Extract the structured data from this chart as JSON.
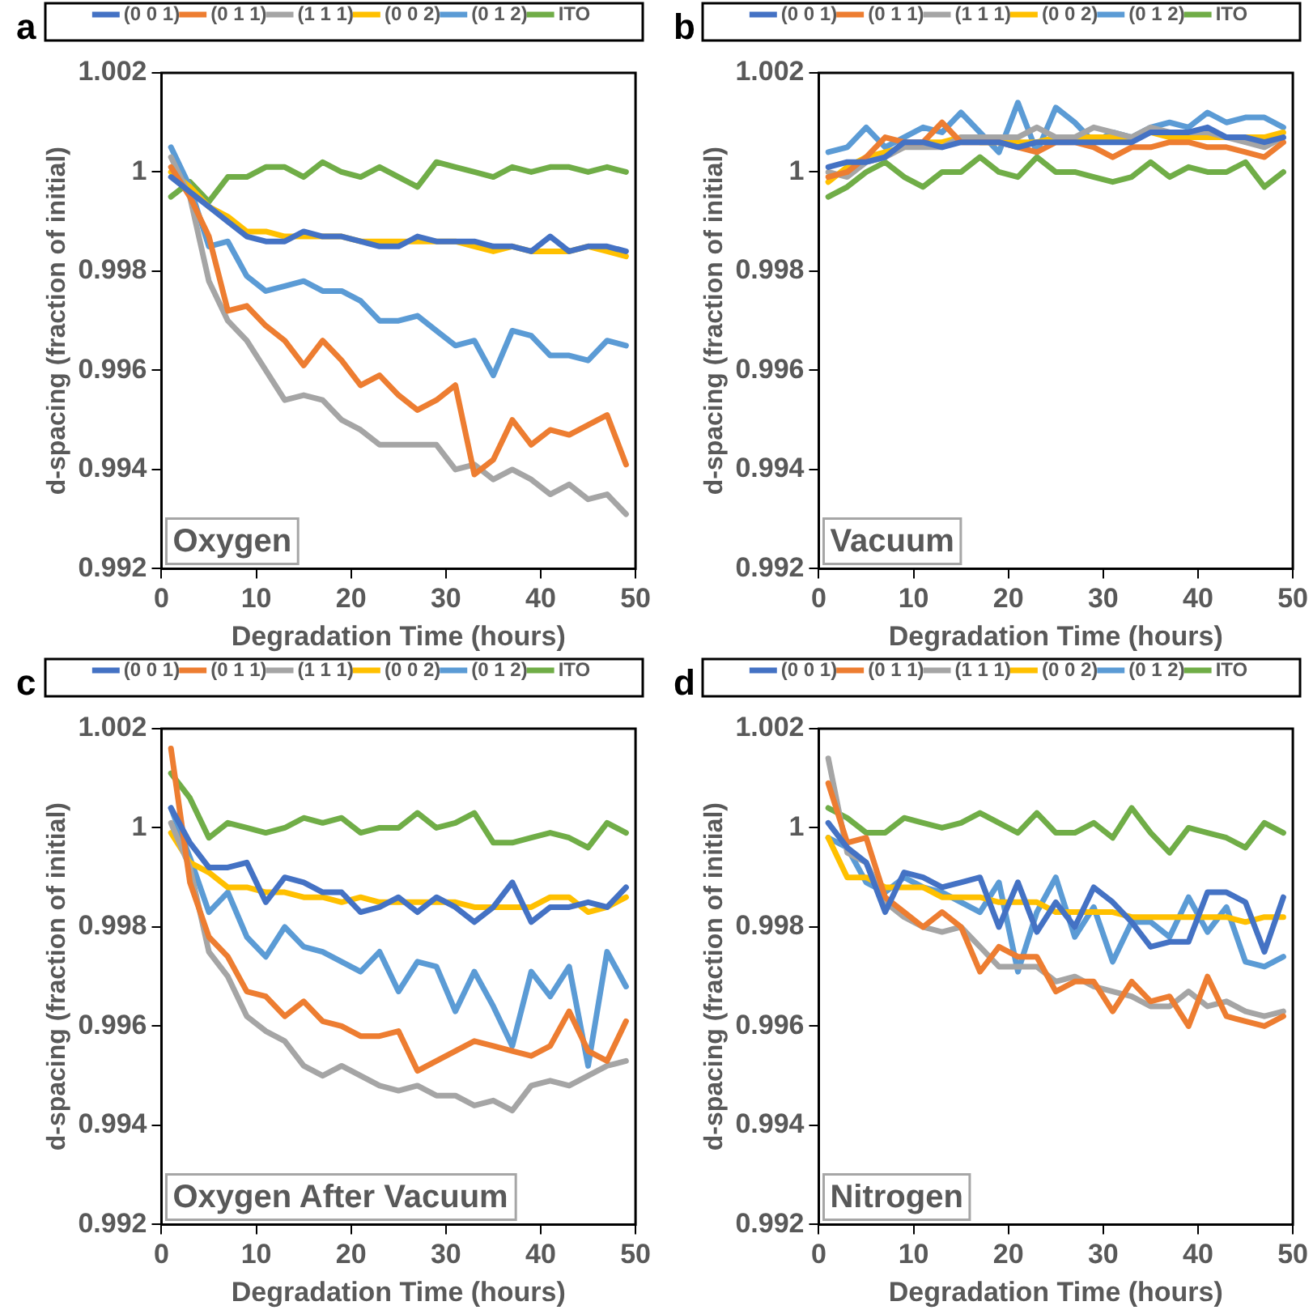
{
  "chart_data": [
    {
      "type": "line",
      "title": "a",
      "xlabel": "Degradation Time (hours)",
      "ylabel": "d-spacing (fraction of initial)",
      "annotations": [
        "Oxygen"
      ],
      "legend": "top",
      "grid": false,
      "marker": "none",
      "line_style": "solid",
      "x": [
        1,
        3,
        5,
        7,
        9,
        11,
        13,
        15,
        17,
        19,
        21,
        23,
        25,
        27,
        29,
        31,
        33,
        35,
        37,
        39,
        41,
        43,
        45,
        47,
        49
      ],
      "xlim": [
        0,
        50
      ],
      "xticks": [
        0,
        10,
        20,
        30,
        40,
        50
      ],
      "ylim": [
        0.992,
        1.002
      ],
      "yticks": [
        0.992,
        0.994,
        0.996,
        0.998,
        1,
        1.002
      ],
      "series": [
        {
          "name": "(0 0 1)",
          "color": "#4472c4",
          "values": [
            0.9999,
            0.9996,
            0.9993,
            0.999,
            0.9987,
            0.9986,
            0.9986,
            0.9988,
            0.9987,
            0.9987,
            0.9986,
            0.9985,
            0.9985,
            0.9987,
            0.9986,
            0.9986,
            0.9986,
            0.9985,
            0.9985,
            0.9984,
            0.9987,
            0.9984,
            0.9985,
            0.9985,
            0.9984
          ]
        },
        {
          "name": "(0 1 1)",
          "color": "#ed7d31",
          "values": [
            1.0001,
            0.9995,
            0.9987,
            0.9972,
            0.9973,
            0.9969,
            0.9966,
            0.9961,
            0.9966,
            0.9962,
            0.9957,
            0.9959,
            0.9955,
            0.9952,
            0.9954,
            0.9957,
            0.9939,
            0.9942,
            0.995,
            0.9945,
            0.9948,
            0.9947,
            0.9949,
            0.9951,
            0.9941
          ]
        },
        {
          "name": "(1 1 1)",
          "color": "#a5a5a5",
          "values": [
            1.0003,
            0.9995,
            0.9978,
            0.997,
            0.9966,
            0.996,
            0.9954,
            0.9955,
            0.9954,
            0.995,
            0.9948,
            0.9945,
            0.9945,
            0.9945,
            0.9945,
            0.994,
            0.9941,
            0.9938,
            0.994,
            0.9938,
            0.9935,
            0.9937,
            0.9934,
            0.9935,
            0.9931
          ]
        },
        {
          "name": "(0 0 2)",
          "color": "#ffc000",
          "values": [
            1,
            0.9997,
            0.9993,
            0.9991,
            0.9988,
            0.9988,
            0.9987,
            0.9987,
            0.9987,
            0.9987,
            0.9986,
            0.9986,
            0.9986,
            0.9986,
            0.9986,
            0.9986,
            0.9985,
            0.9984,
            0.9985,
            0.9984,
            0.9984,
            0.9984,
            0.9985,
            0.9984,
            0.9983
          ]
        },
        {
          "name": "(0 1 2)",
          "color": "#5b9bd5",
          "values": [
            1.0005,
            0.9997,
            0.9985,
            0.9986,
            0.9979,
            0.9976,
            0.9977,
            0.9978,
            0.9976,
            0.9976,
            0.9974,
            0.997,
            0.997,
            0.9971,
            0.9968,
            0.9965,
            0.9966,
            0.9959,
            0.9968,
            0.9967,
            0.9963,
            0.9963,
            0.9962,
            0.9966,
            0.9965
          ]
        },
        {
          "name": "ITO",
          "color": "#70ad47",
          "values": [
            0.9995,
            0.9998,
            0.9994,
            0.9999,
            0.9999,
            1.0001,
            1.0001,
            0.9999,
            1.0002,
            1,
            0.9999,
            1.0001,
            0.9999,
            0.9997,
            1.0002,
            1.0001,
            1,
            0.9999,
            1.0001,
            1,
            1.0001,
            1.0001,
            1,
            1.0001,
            1
          ]
        }
      ]
    },
    {
      "type": "line",
      "title": "b",
      "xlabel": "Degradation Time (hours)",
      "ylabel": "d-spacing (fraction of initial)",
      "annotations": [
        "Vacuum"
      ],
      "legend": "top",
      "grid": false,
      "marker": "none",
      "line_style": "solid",
      "x": [
        1,
        3,
        5,
        7,
        9,
        11,
        13,
        15,
        17,
        19,
        21,
        23,
        25,
        27,
        29,
        31,
        33,
        35,
        37,
        39,
        41,
        43,
        45,
        47,
        49
      ],
      "xlim": [
        0,
        50
      ],
      "xticks": [
        0,
        10,
        20,
        30,
        40,
        50
      ],
      "ylim": [
        0.992,
        1.002
      ],
      "yticks": [
        0.992,
        0.994,
        0.996,
        0.998,
        1,
        1.002
      ],
      "series": [
        {
          "name": "(0 0 1)",
          "color": "#4472c4",
          "values": [
            1.0001,
            1.0002,
            1.0002,
            1.0003,
            1.0006,
            1.0006,
            1.0005,
            1.0006,
            1.0006,
            1.0006,
            1.0005,
            1.0006,
            1.0006,
            1.0006,
            1.0006,
            1.0006,
            1.0006,
            1.0008,
            1.0008,
            1.0008,
            1.0009,
            1.0007,
            1.0007,
            1.0006,
            1.0007
          ]
        },
        {
          "name": "(0 1 1)",
          "color": "#ed7d31",
          "values": [
            0.9999,
            1,
            1.0003,
            1.0007,
            1.0006,
            1.0006,
            1.001,
            1.0006,
            1.0006,
            1.0006,
            1.0005,
            1.0004,
            1.0006,
            1.0006,
            1.0005,
            1.0003,
            1.0005,
            1.0005,
            1.0006,
            1.0006,
            1.0005,
            1.0005,
            1.0004,
            1.0003,
            1.0006
          ]
        },
        {
          "name": "(1 1 1)",
          "color": "#a5a5a5",
          "values": [
            1,
            0.9999,
            1.0002,
            1.0003,
            1.0005,
            1.0005,
            1.0005,
            1.0007,
            1.0007,
            1.0007,
            1.0007,
            1.0009,
            1.0007,
            1.0007,
            1.0009,
            1.0008,
            1.0007,
            1.0009,
            1.0008,
            1.0008,
            1.0008,
            1.0007,
            1.0006,
            1.0005,
            1.0007
          ]
        },
        {
          "name": "(0 0 2)",
          "color": "#ffc000",
          "values": [
            0.9998,
            1.0001,
            1.0003,
            1.0004,
            1.0005,
            1.0006,
            1.0006,
            1.0007,
            1.0006,
            1.0006,
            1.0006,
            1.0006,
            1.0007,
            1.0007,
            1.0007,
            1.0007,
            1.0007,
            1.0008,
            1.0007,
            1.0007,
            1.0007,
            1.0007,
            1.0007,
            1.0007,
            1.0008
          ]
        },
        {
          "name": "(0 1 2)",
          "color": "#5b9bd5",
          "values": [
            1.0004,
            1.0005,
            1.0009,
            1.0005,
            1.0007,
            1.0009,
            1.0008,
            1.0012,
            1.0008,
            1.0004,
            1.0014,
            1.0004,
            1.0013,
            1.001,
            1.0006,
            1.0008,
            1.0007,
            1.0009,
            1.001,
            1.0009,
            1.0012,
            1.001,
            1.0011,
            1.0011,
            1.0009
          ]
        },
        {
          "name": "ITO",
          "color": "#70ad47",
          "values": [
            0.9995,
            0.9997,
            1,
            1.0002,
            0.9999,
            0.9997,
            1,
            1,
            1.0003,
            1,
            0.9999,
            1.0003,
            1,
            1,
            0.9999,
            0.9998,
            0.9999,
            1.0002,
            0.9999,
            1.0001,
            1,
            1,
            1.0002,
            0.9997,
            1
          ]
        }
      ]
    },
    {
      "type": "line",
      "title": "c",
      "xlabel": "Degradation Time (hours)",
      "ylabel": "d-spacing (fraction of initial)",
      "annotations": [
        "Oxygen After Vacuum"
      ],
      "legend": "top",
      "grid": false,
      "marker": "none",
      "line_style": "solid",
      "x": [
        1,
        3,
        5,
        7,
        9,
        11,
        13,
        15,
        17,
        19,
        21,
        23,
        25,
        27,
        29,
        31,
        33,
        35,
        37,
        39,
        41,
        43,
        45,
        47,
        49
      ],
      "xlim": [
        0,
        50
      ],
      "xticks": [
        0,
        10,
        20,
        30,
        40,
        50
      ],
      "ylim": [
        0.992,
        1.002
      ],
      "yticks": [
        0.992,
        0.994,
        0.996,
        0.998,
        1,
        1.002
      ],
      "series": [
        {
          "name": "(0 0 1)",
          "color": "#4472c4",
          "values": [
            1.0004,
            0.9997,
            0.9992,
            0.9992,
            0.9993,
            0.9985,
            0.999,
            0.9989,
            0.9987,
            0.9987,
            0.9983,
            0.9984,
            0.9986,
            0.9983,
            0.9986,
            0.9984,
            0.9981,
            0.9984,
            0.9989,
            0.9981,
            0.9984,
            0.9984,
            0.9985,
            0.9984,
            0.9988
          ]
        },
        {
          "name": "(0 1 1)",
          "color": "#ed7d31",
          "values": [
            1.0016,
            0.9989,
            0.9978,
            0.9974,
            0.9967,
            0.9966,
            0.9962,
            0.9965,
            0.9961,
            0.996,
            0.9958,
            0.9958,
            0.9959,
            0.9951,
            0.9953,
            0.9955,
            0.9957,
            0.9956,
            0.9955,
            0.9954,
            0.9956,
            0.9963,
            0.9955,
            0.9953,
            0.9961
          ]
        },
        {
          "name": "(1 1 1)",
          "color": "#a5a5a5",
          "values": [
            1.0001,
            0.9992,
            0.9975,
            0.997,
            0.9962,
            0.9959,
            0.9957,
            0.9952,
            0.995,
            0.9952,
            0.995,
            0.9948,
            0.9947,
            0.9948,
            0.9946,
            0.9946,
            0.9944,
            0.9945,
            0.9943,
            0.9948,
            0.9949,
            0.9948,
            0.995,
            0.9952,
            0.9953
          ]
        },
        {
          "name": "(0 0 2)",
          "color": "#ffc000",
          "values": [
            0.9999,
            0.9993,
            0.9991,
            0.9988,
            0.9988,
            0.9987,
            0.9987,
            0.9986,
            0.9986,
            0.9985,
            0.9986,
            0.9985,
            0.9985,
            0.9985,
            0.9985,
            0.9985,
            0.9984,
            0.9984,
            0.9984,
            0.9984,
            0.9986,
            0.9986,
            0.9983,
            0.9984,
            0.9986
          ]
        },
        {
          "name": "(0 1 2)",
          "color": "#5b9bd5",
          "values": [
            1.0004,
            0.9994,
            0.9983,
            0.9987,
            0.9978,
            0.9974,
            0.998,
            0.9976,
            0.9975,
            0.9973,
            0.9971,
            0.9975,
            0.9967,
            0.9973,
            0.9972,
            0.9963,
            0.9971,
            0.9964,
            0.9956,
            0.9971,
            0.9966,
            0.9972,
            0.9952,
            0.9975,
            0.9968
          ]
        },
        {
          "name": "ITO",
          "color": "#70ad47",
          "values": [
            1.0011,
            1.0006,
            0.9998,
            1.0001,
            1,
            0.9999,
            1,
            1.0002,
            1.0001,
            1.0002,
            0.9999,
            1,
            1,
            1.0003,
            1,
            1.0001,
            1.0003,
            0.9997,
            0.9997,
            0.9998,
            0.9999,
            0.9998,
            0.9996,
            1.0001,
            0.9999
          ]
        }
      ]
    },
    {
      "type": "line",
      "title": "d",
      "xlabel": "Degradation Time (hours)",
      "ylabel": "d-spacing (fraction of initial)",
      "annotations": [
        "Nitrogen"
      ],
      "legend": "top",
      "grid": false,
      "marker": "none",
      "line_style": "solid",
      "x": [
        1,
        3,
        5,
        7,
        9,
        11,
        13,
        15,
        17,
        19,
        21,
        23,
        25,
        27,
        29,
        31,
        33,
        35,
        37,
        39,
        41,
        43,
        45,
        47,
        49
      ],
      "xlim": [
        0,
        50
      ],
      "xticks": [
        0,
        10,
        20,
        30,
        40,
        50
      ],
      "ylim": [
        0.992,
        1.002
      ],
      "yticks": [
        0.992,
        0.994,
        0.996,
        0.998,
        1,
        1.002
      ],
      "series": [
        {
          "name": "(0 0 1)",
          "color": "#4472c4",
          "values": [
            1.0001,
            0.9996,
            0.9993,
            0.9983,
            0.9991,
            0.999,
            0.9988,
            0.9989,
            0.999,
            0.998,
            0.9989,
            0.9979,
            0.9985,
            0.998,
            0.9988,
            0.9985,
            0.9981,
            0.9976,
            0.9977,
            0.9977,
            0.9987,
            0.9987,
            0.9985,
            0.9975,
            0.9986
          ]
        },
        {
          "name": "(0 1 1)",
          "color": "#ed7d31",
          "values": [
            1.0009,
            0.9997,
            0.9998,
            0.9986,
            0.9983,
            0.998,
            0.9983,
            0.998,
            0.9971,
            0.9976,
            0.9974,
            0.9974,
            0.9967,
            0.9969,
            0.9969,
            0.9963,
            0.9969,
            0.9965,
            0.9966,
            0.996,
            0.997,
            0.9962,
            0.9961,
            0.996,
            0.9962
          ]
        },
        {
          "name": "(1 1 1)",
          "color": "#a5a5a5",
          "values": [
            1.0014,
            0.9995,
            0.9993,
            0.9985,
            0.9982,
            0.998,
            0.9979,
            0.998,
            0.9976,
            0.9972,
            0.9972,
            0.9972,
            0.9969,
            0.997,
            0.9968,
            0.9967,
            0.9966,
            0.9964,
            0.9964,
            0.9967,
            0.9964,
            0.9965,
            0.9963,
            0.9962,
            0.9963
          ]
        },
        {
          "name": "(0 0 2)",
          "color": "#ffc000",
          "values": [
            0.9998,
            0.999,
            0.999,
            0.9988,
            0.9988,
            0.9988,
            0.9986,
            0.9986,
            0.9986,
            0.9985,
            0.9985,
            0.9985,
            0.9983,
            0.9983,
            0.9983,
            0.9983,
            0.9982,
            0.9982,
            0.9982,
            0.9982,
            0.9982,
            0.9982,
            0.9981,
            0.9982,
            0.9982
          ]
        },
        {
          "name": "(0 1 2)",
          "color": "#5b9bd5",
          "values": [
            0.9998,
            0.9996,
            0.9989,
            0.9987,
            0.999,
            0.9988,
            0.9987,
            0.9985,
            0.9983,
            0.9989,
            0.9971,
            0.9983,
            0.999,
            0.9978,
            0.9984,
            0.9973,
            0.9981,
            0.9981,
            0.9978,
            0.9986,
            0.9979,
            0.9984,
            0.9973,
            0.9972,
            0.9974
          ]
        },
        {
          "name": "ITO",
          "color": "#70ad47",
          "values": [
            1.0004,
            1.0002,
            0.9999,
            0.9999,
            1.0002,
            1.0001,
            1,
            1.0001,
            1.0003,
            1.0001,
            0.9999,
            1.0003,
            0.9999,
            0.9999,
            1.0001,
            0.9998,
            1.0004,
            0.9999,
            0.9995,
            1,
            0.9999,
            0.9998,
            0.9996,
            1.0001,
            0.9999
          ]
        }
      ]
    }
  ]
}
